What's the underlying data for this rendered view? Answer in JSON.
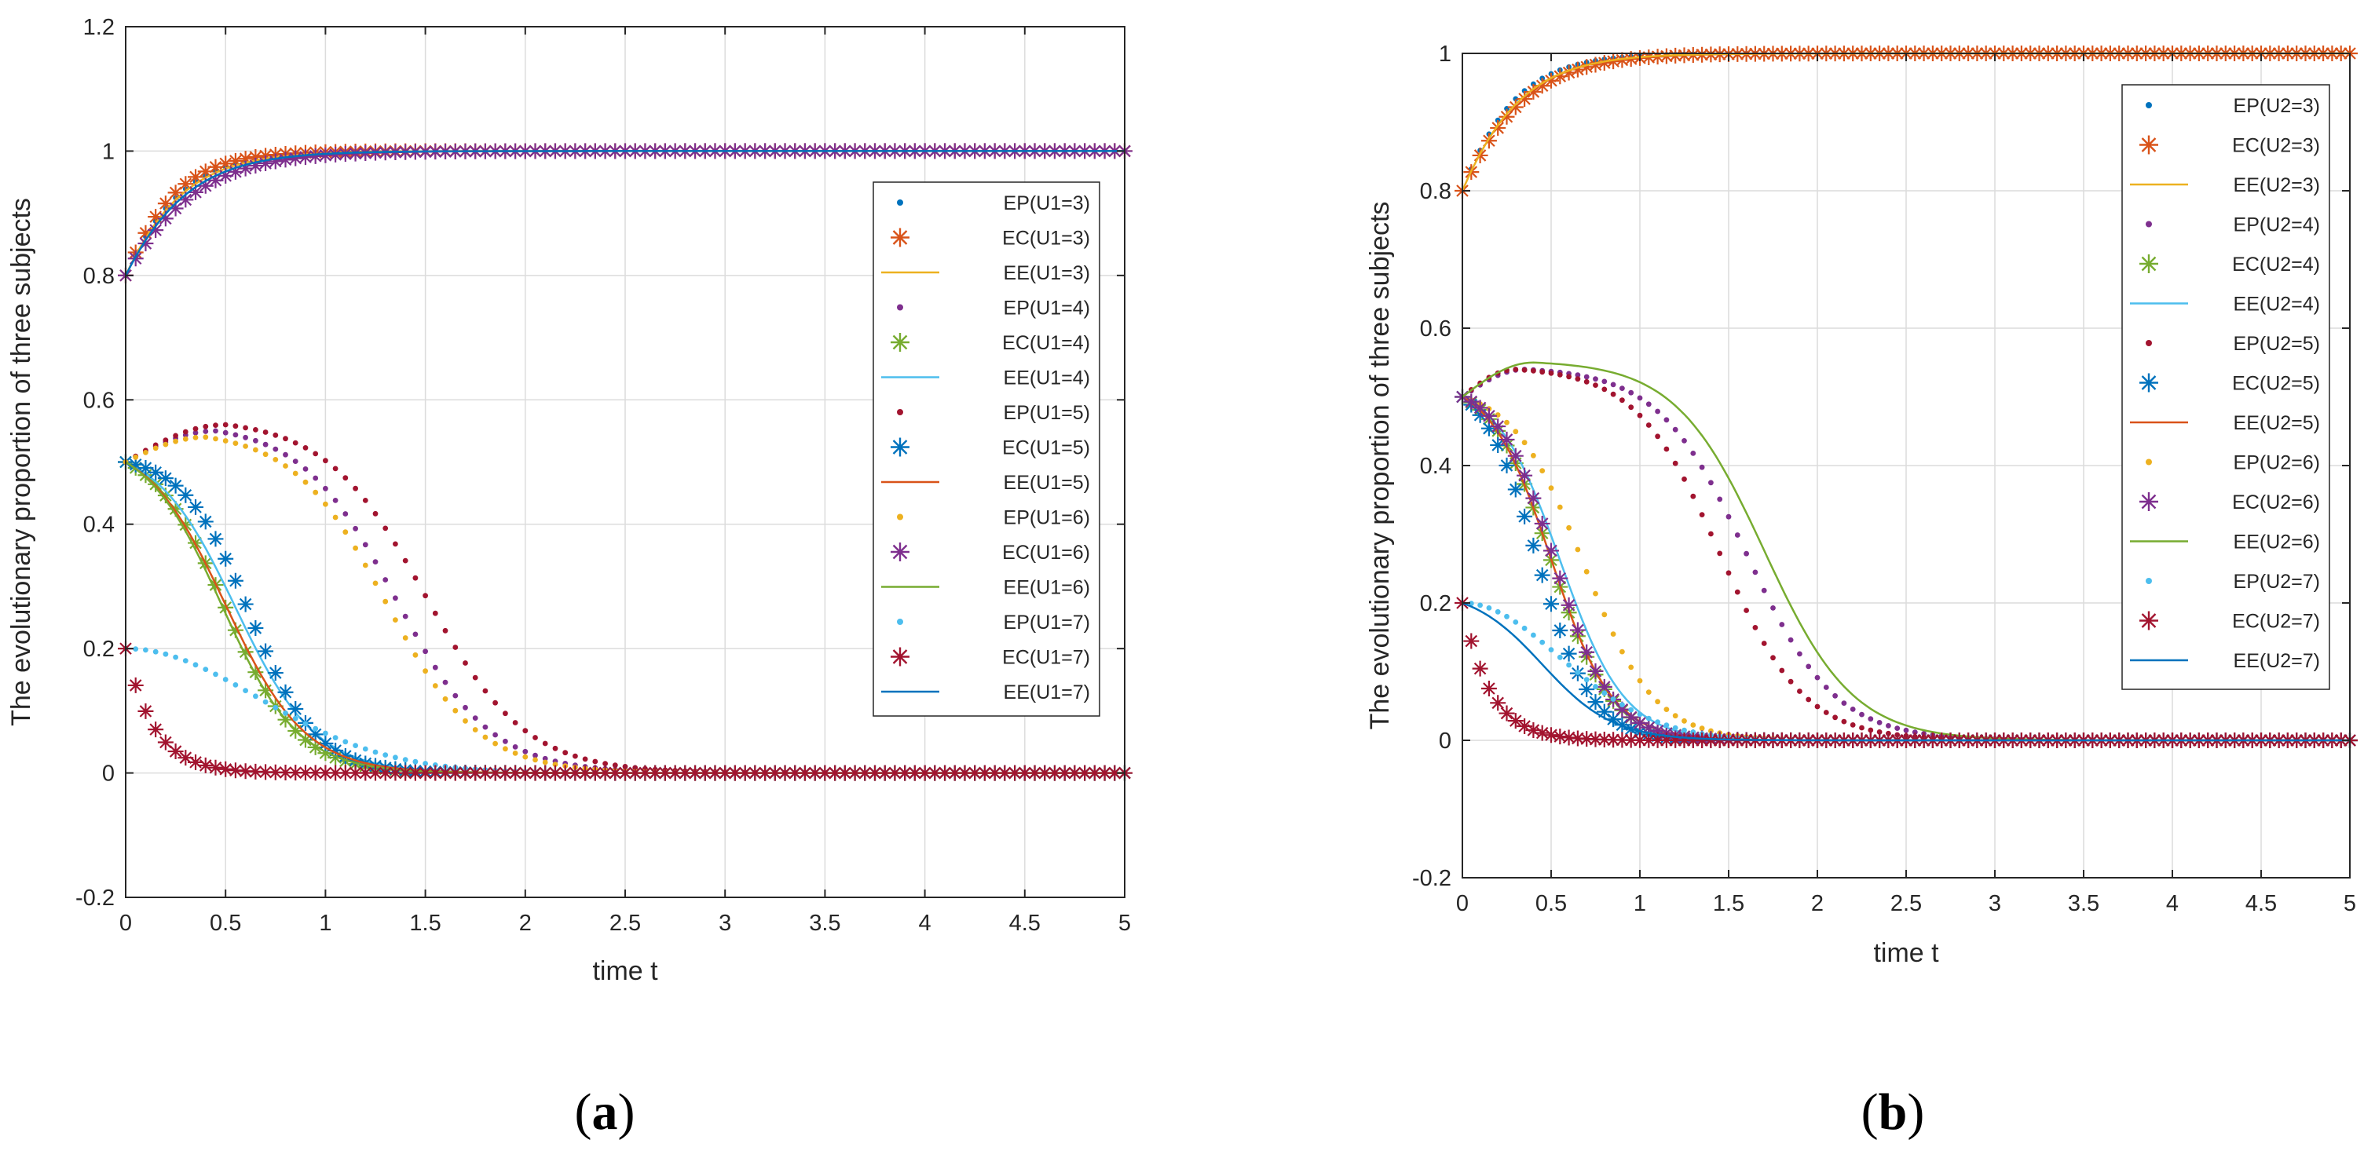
{
  "colors": {
    "c1": "#0072BD",
    "c2": "#D95319",
    "c3": "#EDB120",
    "c4": "#7E2F8E",
    "c5": "#77AC30",
    "c6": "#4DBEEE",
    "c7": "#A2142F"
  },
  "panels": {
    "a": {
      "open": "(",
      "letter": "a",
      "close": ")"
    },
    "b": {
      "open": "(",
      "letter": "b",
      "close": ")"
    }
  },
  "chart_data": [
    {
      "type": "line",
      "panel": "a",
      "title": "",
      "xlabel": "time t",
      "ylabel": "The evolutionary proportion of three subjects",
      "xlim": [
        0,
        5
      ],
      "ylim": [
        -0.2,
        1.2
      ],
      "xticks": [
        0,
        0.5,
        1,
        1.5,
        2,
        2.5,
        3,
        3.5,
        4,
        4.5,
        5
      ],
      "xtick_labels": [
        "0",
        "0.5",
        "1",
        "1.5",
        "2",
        "2.5",
        "3",
        "3.5",
        "4",
        "4.5",
        "5"
      ],
      "yticks": [
        -0.2,
        0,
        0.2,
        0.4,
        0.6,
        0.8,
        1,
        1.2
      ],
      "ytick_labels": [
        "-0.2",
        "0",
        "0.2",
        "0.4",
        "0.6",
        "0.8",
        "1",
        "1.2"
      ],
      "grid": true,
      "legend_position": "right",
      "series": [
        {
          "name": "EP(U1=3)",
          "marker": "dot",
          "color": "#0072BD",
          "shape": "sigmoid",
          "params": [
            0.8,
            1.0,
            4.5
          ]
        },
        {
          "name": "EC(U1=3)",
          "marker": "star",
          "color": "#D95319",
          "shape": "sigmoid",
          "params": [
            0.8,
            1.0,
            5.0
          ]
        },
        {
          "name": "EE(U1=3)",
          "marker": "line",
          "color": "#EDB120",
          "shape": "sigmoid",
          "params": [
            0.8,
            1.0,
            4.3
          ]
        },
        {
          "name": "EP(U1=4)",
          "marker": "dot",
          "color": "#7E2F8E",
          "shape": "hump",
          "params": [
            0.5,
            0.55,
            0.45,
            1.35,
            4.2
          ]
        },
        {
          "name": "EC(U1=4)",
          "marker": "star",
          "color": "#77AC30",
          "shape": "decay",
          "params": [
            0.5,
            0.5,
            5.5
          ]
        },
        {
          "name": "EE(U1=4)",
          "marker": "line",
          "color": "#4DBEEE",
          "shape": "decay",
          "params": [
            0.5,
            0.55,
            5.0
          ]
        },
        {
          "name": "EP(U1=5)",
          "marker": "dot",
          "color": "#A2142F",
          "shape": "hump",
          "params": [
            0.5,
            0.56,
            0.5,
            1.5,
            4.0
          ]
        },
        {
          "name": "EC(U1=5)",
          "marker": "star",
          "color": "#0072BD",
          "shape": "decay",
          "params": [
            0.5,
            0.62,
            6.0
          ]
        },
        {
          "name": "EE(U1=5)",
          "marker": "line",
          "color": "#D95319",
          "shape": "decay",
          "params": [
            0.5,
            0.5,
            5.0
          ]
        },
        {
          "name": "EP(U1=6)",
          "marker": "dot",
          "color": "#EDB120",
          "shape": "hump",
          "params": [
            0.5,
            0.54,
            0.4,
            1.3,
            4.3
          ]
        },
        {
          "name": "EC(U1=6)",
          "marker": "star",
          "color": "#7E2F8E",
          "shape": "sigmoid",
          "params": [
            0.8,
            1.0,
            3.6
          ]
        },
        {
          "name": "EE(U1=6)",
          "marker": "line",
          "color": "#77AC30",
          "shape": "decay",
          "params": [
            0.5,
            0.48,
            5.2
          ]
        },
        {
          "name": "EP(U1=7)",
          "marker": "dot",
          "color": "#4DBEEE",
          "shape": "slowdecay",
          "params": [
            0.2,
            1.4,
            1.6
          ]
        },
        {
          "name": "EC(U1=7)",
          "marker": "star",
          "color": "#A2142F",
          "shape": "fastdecay",
          "params": [
            0.2,
            7.0
          ]
        },
        {
          "name": "EE(U1=7)",
          "marker": "line",
          "color": "#0072BD",
          "shape": "sigmoid",
          "params": [
            0.8,
            1.0,
            4.0
          ]
        }
      ]
    },
    {
      "type": "line",
      "panel": "b",
      "title": "",
      "xlabel": "time t",
      "ylabel": "The evolutionary proportion of three subjects",
      "xlim": [
        0,
        5
      ],
      "ylim": [
        -0.2,
        1.0
      ],
      "xticks": [
        0,
        0.5,
        1,
        1.5,
        2,
        2.5,
        3,
        3.5,
        4,
        4.5,
        5
      ],
      "xtick_labels": [
        "0",
        "0.5",
        "1",
        "1.5",
        "2",
        "2.5",
        "3",
        "3.5",
        "4",
        "4.5",
        "5"
      ],
      "yticks": [
        -0.2,
        0,
        0.2,
        0.4,
        0.6,
        0.8,
        1
      ],
      "ytick_labels": [
        "-0.2",
        "0",
        "0.2",
        "0.4",
        "0.6",
        "0.8",
        "1"
      ],
      "grid": true,
      "legend_position": "top-right",
      "series": [
        {
          "name": "EP(U2=3)",
          "marker": "dot",
          "color": "#0072BD",
          "shape": "sigmoid",
          "params": [
            0.8,
            1.0,
            4.2
          ]
        },
        {
          "name": "EC(U2=3)",
          "marker": "star",
          "color": "#D95319",
          "shape": "sigmoid",
          "params": [
            0.8,
            1.0,
            3.6
          ]
        },
        {
          "name": "EE(U2=3)",
          "marker": "line",
          "color": "#EDB120",
          "shape": "sigmoid",
          "params": [
            0.8,
            1.0,
            3.8
          ]
        },
        {
          "name": "EP(U2=4)",
          "marker": "dot",
          "color": "#7E2F8E",
          "shape": "hump",
          "params": [
            0.5,
            0.54,
            0.35,
            1.6,
            4.0
          ]
        },
        {
          "name": "EC(U2=4)",
          "marker": "star",
          "color": "#77AC30",
          "shape": "decay",
          "params": [
            0.5,
            0.5,
            6.0
          ]
        },
        {
          "name": "EE(U2=4)",
          "marker": "line",
          "color": "#4DBEEE",
          "shape": "decay",
          "params": [
            0.5,
            0.55,
            5.5
          ]
        },
        {
          "name": "EP(U2=5)",
          "marker": "dot",
          "color": "#A2142F",
          "shape": "hump",
          "params": [
            0.5,
            0.54,
            0.3,
            1.45,
            4.2
          ]
        },
        {
          "name": "EC(U2=5)",
          "marker": "star",
          "color": "#0072BD",
          "shape": "decay",
          "params": [
            0.5,
            0.42,
            6.5
          ]
        },
        {
          "name": "EE(U2=5)",
          "marker": "line",
          "color": "#D95319",
          "shape": "decay",
          "params": [
            0.5,
            0.5,
            5.8
          ]
        },
        {
          "name": "EP(U2=6)",
          "marker": "dot",
          "color": "#EDB120",
          "shape": "decay",
          "params": [
            0.5,
            0.68,
            5.0
          ]
        },
        {
          "name": "EC(U2=6)",
          "marker": "star",
          "color": "#7E2F8E",
          "shape": "decay",
          "params": [
            0.5,
            0.52,
            6.2
          ]
        },
        {
          "name": "EE(U2=6)",
          "marker": "line",
          "color": "#77AC30",
          "shape": "hump",
          "params": [
            0.5,
            0.55,
            0.4,
            1.7,
            4.0
          ]
        },
        {
          "name": "EP(U2=7)",
          "marker": "dot",
          "color": "#4DBEEE",
          "shape": "slowdecay",
          "params": [
            0.2,
            1.2,
            2.0
          ]
        },
        {
          "name": "EC(U2=7)",
          "marker": "star",
          "color": "#A2142F",
          "shape": "fastdecay",
          "params": [
            0.2,
            6.5
          ]
        },
        {
          "name": "EE(U2=7)",
          "marker": "line",
          "color": "#0072BD",
          "shape": "decay",
          "params": [
            0.2,
            0.45,
            5.0
          ]
        }
      ]
    }
  ]
}
